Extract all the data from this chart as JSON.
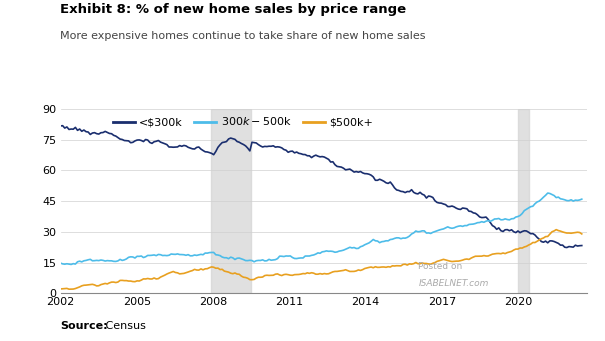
{
  "title": "Exhibit 8: % of new home sales by price range",
  "subtitle": "More expensive homes continue to take share of new home sales",
  "source_bold": "Source:",
  "source_rest": " Census",
  "xlim": [
    2002.0,
    2022.7
  ],
  "ylim": [
    0,
    90
  ],
  "yticks": [
    0,
    15,
    30,
    45,
    60,
    75,
    90
  ],
  "xticks": [
    2002,
    2005,
    2008,
    2011,
    2014,
    2017,
    2020
  ],
  "recession1": [
    2007.92,
    2009.5
  ],
  "recession2": [
    2020.0,
    2020.42
  ],
  "series_colors": {
    "under300": "#1a2e6e",
    "mid": "#4dbce9",
    "over500": "#e8a020"
  },
  "legend_labels": [
    "<$300k",
    "$300k - $500k",
    "$500k+"
  ],
  "background_color": "#ffffff",
  "watermark_line1": "Posted on",
  "watermark_line2": "ISABELNET.com"
}
